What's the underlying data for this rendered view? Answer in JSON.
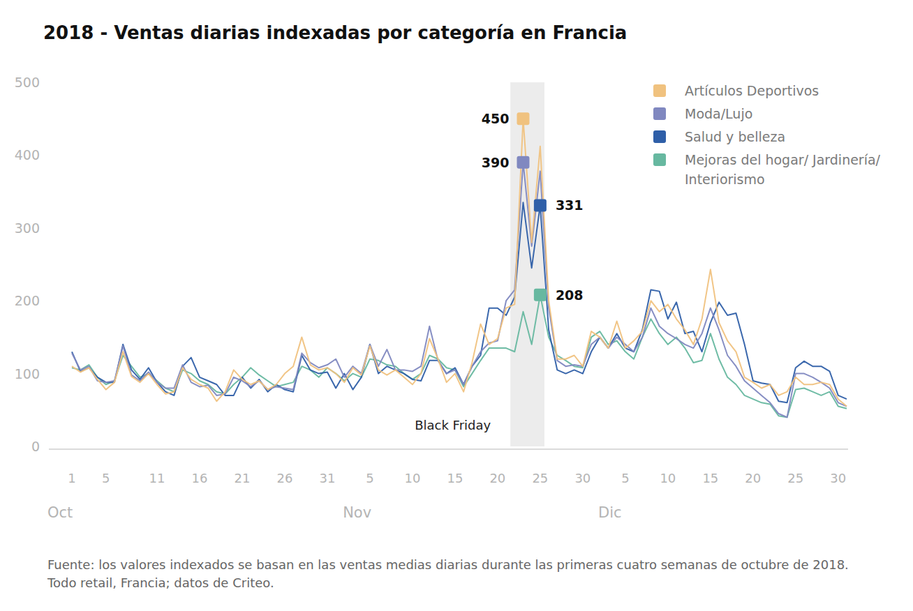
{
  "chart_data": {
    "type": "line",
    "title": "2018 - Ventas diarias indexadas por categoría en Francia",
    "categories": [
      "1",
      null,
      null,
      null,
      "5",
      null,
      null,
      null,
      null,
      null,
      "11",
      null,
      null,
      null,
      null,
      "16",
      null,
      null,
      null,
      null,
      "21",
      null,
      null,
      null,
      null,
      "26",
      null,
      null,
      null,
      null,
      "31",
      null,
      null,
      null,
      null,
      "5",
      null,
      null,
      null,
      null,
      "10",
      null,
      null,
      null,
      null,
      "15",
      null,
      null,
      null,
      null,
      "20",
      null,
      null,
      null,
      null,
      "25",
      null,
      null,
      null,
      null,
      "30",
      null,
      null,
      null,
      null,
      "5",
      null,
      null,
      null,
      null,
      "10",
      null,
      null,
      null,
      null,
      "15",
      null,
      null,
      null,
      null,
      "20",
      null,
      null,
      null,
      null,
      "25",
      null,
      null,
      null,
      null,
      "30",
      null
    ],
    "x_groups": [
      {
        "label": "Oct",
        "start": 0
      },
      {
        "label": "Nov",
        "start": 31
      },
      {
        "label": "Dic",
        "start": 61
      }
    ],
    "series": [
      {
        "name": "Artículos Deportivos",
        "color": "#f0c27f",
        "values": [
          110,
          102,
          108,
          92,
          78,
          88,
          130,
          96,
          88,
          100,
          85,
          72,
          75,
          108,
          92,
          85,
          80,
          62,
          75,
          105,
          92,
          85,
          90,
          78,
          85,
          100,
          110,
          150,
          112,
          105,
          108,
          100,
          88,
          108,
          98,
          138,
          105,
          98,
          105,
          95,
          85,
          100,
          148,
          120,
          88,
          100,
          75,
          115,
          168,
          140,
          148,
          190,
          195,
          450,
          280,
          412,
          200,
          120,
          120,
          125,
          110,
          158,
          150,
          135,
          172,
          135,
          145,
          158,
          200,
          185,
          195,
          175,
          160,
          140,
          175,
          243,
          170,
          145,
          130,
          95,
          88,
          80,
          85,
          70,
          75,
          95,
          85,
          85,
          88,
          85,
          65,
          55
        ]
      },
      {
        "name": "Moda/Lujo",
        "color": "#8088c0",
        "values": [
          128,
          105,
          110,
          90,
          88,
          90,
          138,
          98,
          90,
          102,
          88,
          80,
          80,
          112,
          88,
          82,
          84,
          70,
          72,
          95,
          90,
          82,
          90,
          78,
          82,
          80,
          78,
          128,
          115,
          108,
          112,
          120,
          95,
          110,
          100,
          140,
          110,
          133,
          105,
          105,
          103,
          110,
          165,
          118,
          100,
          105,
          85,
          110,
          130,
          142,
          145,
          200,
          215,
          390,
          275,
          378,
          190,
          118,
          110,
          112,
          110,
          140,
          150,
          135,
          150,
          140,
          130,
          150,
          190,
          165,
          155,
          148,
          140,
          135,
          155,
          190,
          160,
          125,
          110,
          90,
          80,
          70,
          60,
          45,
          40,
          100,
          100,
          95,
          88,
          80,
          60,
          55
        ]
      },
      {
        "name": "Salud y belleza",
        "color": "#2f5fa8",
        "values": [
          130,
          103,
          108,
          95,
          88,
          88,
          140,
          105,
          92,
          108,
          88,
          75,
          70,
          110,
          122,
          95,
          90,
          85,
          70,
          70,
          95,
          80,
          92,
          75,
          85,
          78,
          75,
          125,
          105,
          100,
          102,
          80,
          100,
          78,
          95,
          140,
          100,
          110,
          105,
          100,
          92,
          90,
          118,
          118,
          100,
          108,
          85,
          110,
          125,
          190,
          190,
          180,
          205,
          335,
          245,
          331,
          160,
          105,
          100,
          105,
          100,
          130,
          150,
          135,
          155,
          135,
          130,
          160,
          215,
          213,
          175,
          198,
          155,
          158,
          130,
          170,
          198,
          180,
          183,
          140,
          90,
          87,
          85,
          62,
          60,
          108,
          117,
          110,
          110,
          103,
          70,
          65
        ]
      },
      {
        "name": "Mejoras del hogar/ Jardinería/ Interiorismo",
        "color": "#67b8a0",
        "values": [
          108,
          105,
          112,
          95,
          85,
          90,
          125,
          110,
          95,
          100,
          90,
          80,
          75,
          105,
          100,
          90,
          85,
          75,
          72,
          85,
          95,
          108,
          98,
          90,
          82,
          85,
          88,
          110,
          105,
          95,
          108,
          100,
          90,
          100,
          95,
          120,
          118,
          112,
          110,
          100,
          92,
          100,
          125,
          120,
          108,
          105,
          82,
          100,
          118,
          135,
          135,
          135,
          130,
          185,
          140,
          208,
          150,
          125,
          118,
          110,
          108,
          150,
          158,
          140,
          145,
          130,
          120,
          150,
          175,
          155,
          140,
          150,
          135,
          115,
          118,
          155,
          120,
          95,
          85,
          70,
          65,
          60,
          58,
          42,
          40,
          78,
          80,
          75,
          70,
          75,
          55,
          52
        ]
      }
    ],
    "ylim": [
      0,
      500
    ],
    "yticks": [
      0,
      100,
      200,
      300,
      400,
      500
    ],
    "grid": false,
    "legend": "top-right",
    "highlight": {
      "label": "Black Friday",
      "start": 52,
      "end": 55
    },
    "annotations": [
      {
        "series": 0,
        "index": 53,
        "label": "450"
      },
      {
        "series": 1,
        "index": 53,
        "label": "390"
      },
      {
        "series": 2,
        "index": 55,
        "label": "331"
      },
      {
        "series": 3,
        "index": 55,
        "label": "208"
      }
    ],
    "source": "Fuente: los valores indexados se basan en las ventas medias diarias durante las primeras cuatro semanas de octubre de 2018. Todo retail, Francia; datos de Criteo."
  }
}
